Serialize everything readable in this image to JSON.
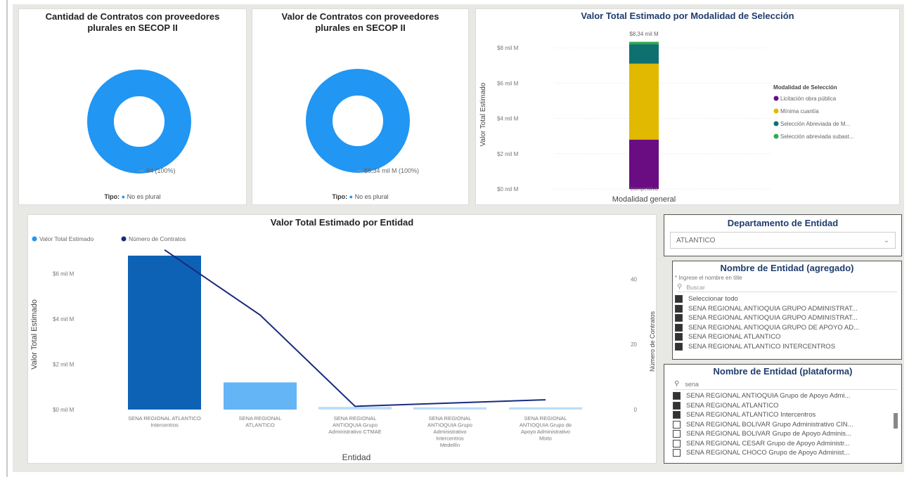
{
  "colors": {
    "donut": "#2196f3",
    "bar_dark": "#0d62b6",
    "bar_light": "#64b5f6",
    "bar_faint": "#bbdefb",
    "line": "#1a2a80",
    "mod_licitacion": "#6a0d83",
    "mod_minima": "#e1b900",
    "mod_abreviada_m": "#0f7070",
    "mod_abreviada_s": "#2eaa50"
  },
  "donut1": {
    "title": "Cantidad de Contratos con proveedores plurales en SECOP II",
    "label": "84 (100%)",
    "legend_title": "Tipo:",
    "legend_item": "No es plural"
  },
  "donut2": {
    "title": "Valor de Contratos con proveedores plurales en SECOP II",
    "label": "$8,34 mil M (100%)",
    "legend_title": "Tipo:",
    "legend_item": "No es plural"
  },
  "stack": {
    "total_label": "$8,34 mil M",
    "legend_title": "Modalidad de Selección",
    "legend_items": [
      "Licitación obra pública",
      "Mínima cuantía",
      "Selección Abreviada de M...",
      "Selección abreviada subast..."
    ]
  },
  "entity": {
    "legend": [
      "Valor Total Estimado",
      "Número de Contratos"
    ]
  },
  "slicer_dep": {
    "title": "Departamento de Entidad",
    "value": "ATLANTICO"
  },
  "slicer_agg": {
    "title": "Nombre de Entidad (agregado)",
    "hint": "* Ingrese el nombre en title",
    "search_placeholder": "Buscar",
    "items": [
      "Seleccionar todo",
      "SENA REGIONAL ANTIOQUIA GRUPO ADMINISTRAT...",
      "SENA REGIONAL ANTIOQUIA GRUPO ADMINISTRAT...",
      "SENA REGIONAL ANTIOQUIA GRUPO DE APOYO AD...",
      "SENA REGIONAL ATLANTICO",
      "SENA REGIONAL ATLANTICO INTERCENTROS"
    ]
  },
  "slicer_plat": {
    "title": "Nombre de Entidad (plataforma)",
    "search_value": "sena",
    "items": [
      {
        "label": "SENA REGIONAL ANTIOQUIA Grupo de Apoyo Admi...",
        "checked": true
      },
      {
        "label": "SENA REGIONAL ATLANTICO",
        "checked": true
      },
      {
        "label": "SENA REGIONAL ATLANTICO Intercentros",
        "checked": true
      },
      {
        "label": "SENA REGIONAL BOLIVAR Grupo Administrativo CIN...",
        "checked": false
      },
      {
        "label": "SENA REGIONAL BOLIVAR Grupo de Apoyo Adminis...",
        "checked": false
      },
      {
        "label": "SENA REGIONAL CESAR Grupo de Apoyo Administr...",
        "checked": false
      },
      {
        "label": "SENA REGIONAL CHOCO Grupo de Apoyo Administ...",
        "checked": false
      }
    ]
  },
  "chart_data": [
    {
      "type": "pie",
      "title": "Cantidad de Contratos con proveedores plurales en SECOP II",
      "categories": [
        "No es plural"
      ],
      "values": [
        84
      ]
    },
    {
      "type": "pie",
      "title": "Valor de Contratos con proveedores plurales en SECOP II",
      "categories": [
        "No es plural"
      ],
      "values": [
        8.34
      ]
    },
    {
      "type": "bar",
      "title": "Valor Total Estimado por Modalidad de Selección",
      "categories": [
        "Competitiva"
      ],
      "xlabel": "Modalidad general",
      "ylabel": "Valor Total Estimado",
      "yticks": [
        "$0 mil M",
        "$2 mil M",
        "$4 mil M",
        "$6 mil M",
        "$8 mil M"
      ],
      "ylim": [
        0,
        8.6
      ],
      "series": [
        {
          "name": "Licitación obra pública",
          "values": [
            2.8
          ]
        },
        {
          "name": "Mínima cuantía",
          "values": [
            4.3
          ]
        },
        {
          "name": "Selección Abreviada de M...",
          "values": [
            1.1
          ]
        },
        {
          "name": "Selección abreviada subast...",
          "values": [
            0.14
          ]
        }
      ]
    },
    {
      "type": "bar",
      "title": "Valor Total Estimado por Entidad",
      "xlabel": "Entidad",
      "ylabel": "Valor Total Estimado",
      "y2label": "Número de Contratos",
      "categories": [
        "SENA REGIONAL ATLANTICO Intercentros",
        "SENA REGIONAL ATLANTICO",
        "SENA REGIONAL ANTIOQUIA Grupo Administrativo CTMAE",
        "SENA REGIONAL ANTIOQUIA Grupo Administrativo Intercentros Medellín",
        "SENA REGIONAL ANTIOQUIA Grupo de Apoyo Administrativo Mixto"
      ],
      "yticks": [
        "$0 mil M",
        "$2 mil M",
        "$4 mil M",
        "$6 mil M"
      ],
      "y2ticks": [
        "0",
        "20",
        "40"
      ],
      "ylim": [
        0,
        7.2
      ],
      "y2lim": [
        0,
        50
      ],
      "series": [
        {
          "name": "Valor Total Estimado",
          "values": [
            6.8,
            1.2,
            0.12,
            0.1,
            0.1
          ]
        },
        {
          "name": "Número de Contratos",
          "values": [
            49,
            29,
            1,
            2,
            3
          ]
        }
      ]
    }
  ]
}
